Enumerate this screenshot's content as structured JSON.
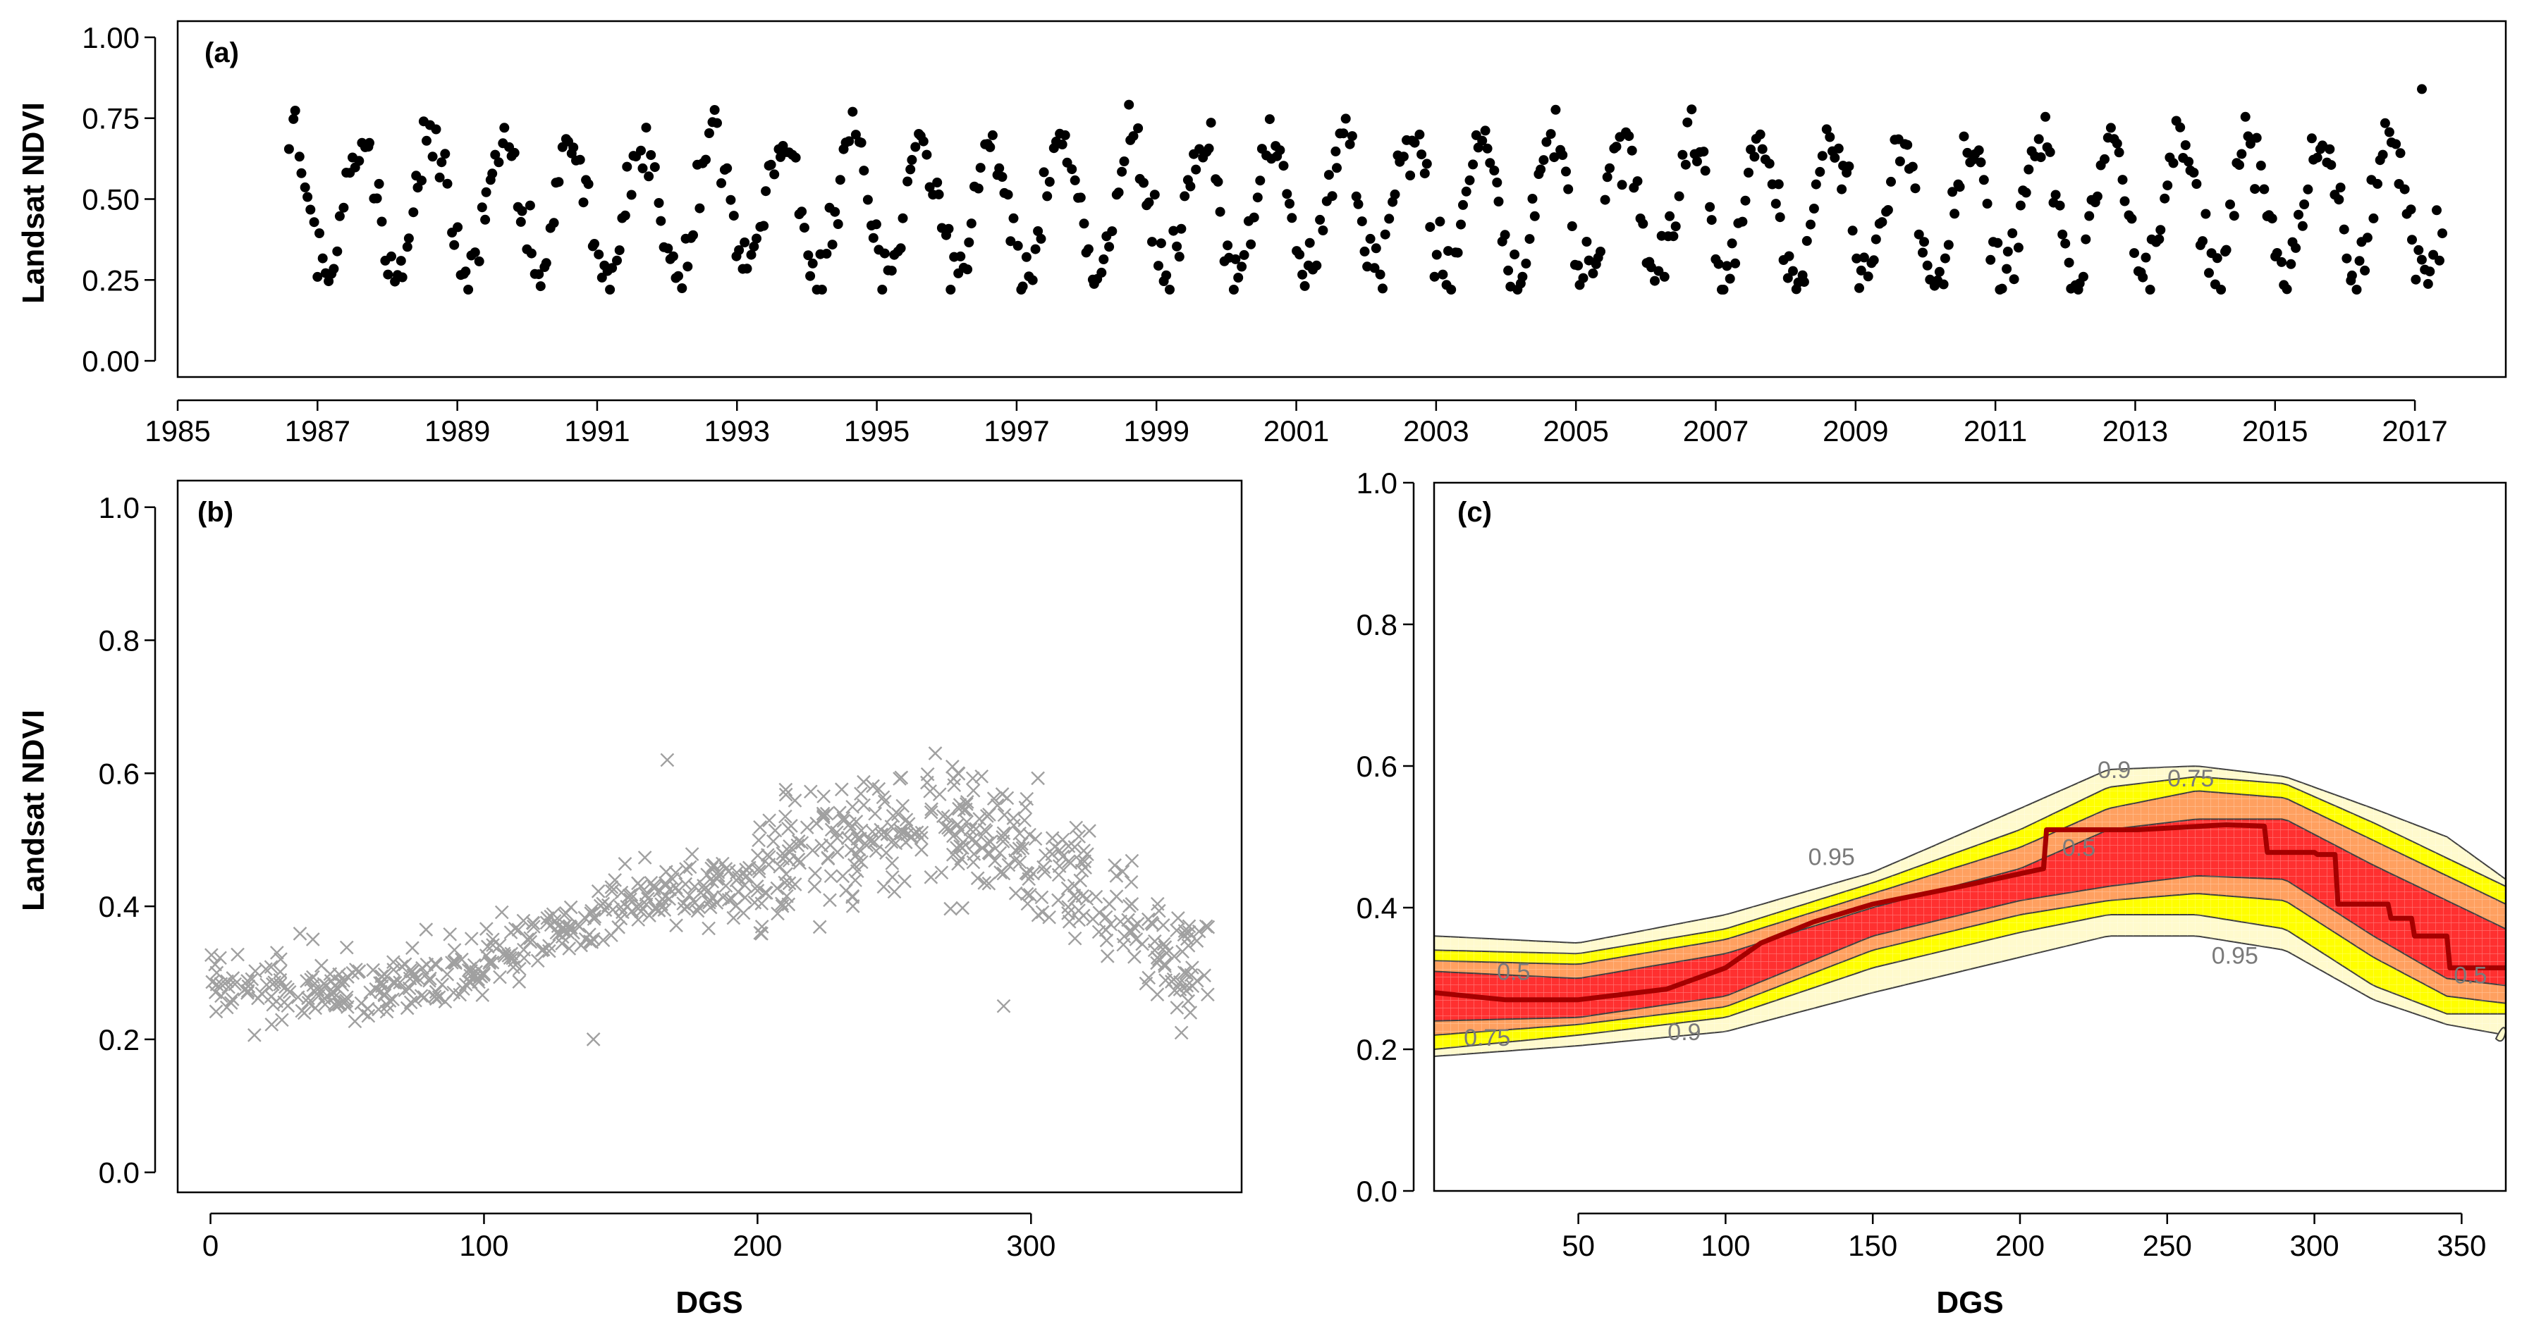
{
  "chart_data": [
    {
      "panel": "(a)",
      "type": "scatter",
      "ylabel": "Landsat NDVI",
      "xlabel": "",
      "xlim": [
        1985,
        2018.3
      ],
      "ylim": [
        -0.05,
        1.05
      ],
      "xticks": [
        "1985",
        "1987",
        "1989",
        "1991",
        "1993",
        "1995",
        "1997",
        "1999",
        "2001",
        "2003",
        "2005",
        "2007",
        "2009",
        "2011",
        "2013",
        "2015",
        "2017"
      ],
      "yticks": [
        "0.00",
        "0.25",
        "0.50",
        "0.75",
        "1.00"
      ],
      "marker": "filled circle",
      "marker_color": "#000000",
      "series": {
        "description": "Landsat NDVI time series, seasonal oscillation between ~0.25 and ~0.75",
        "x_start": 1986.6,
        "x_end": 2017.4,
        "n_points": 720,
        "seasonal_min": 0.27,
        "seasonal_max": 0.68,
        "peak_day_of_year": 235,
        "highest_value": 0.84,
        "highest_value_year": 2017.1,
        "lowest_value": 0.22
      }
    },
    {
      "panel": "(b)",
      "type": "scatter",
      "ylabel": "Landsat NDVI",
      "xlabel": "DGS",
      "xlim": [
        -12,
        377
      ],
      "ylim": [
        -0.03,
        1.04
      ],
      "xticks": [
        "0",
        "100",
        "200",
        "300"
      ],
      "yticks": [
        "0.0",
        "0.2",
        "0.4",
        "0.6",
        "0.8",
        "1.0"
      ],
      "marker": "x",
      "marker_color": "#a0a0a0",
      "seasonal_profile": {
        "dgs": [
          0,
          50,
          100,
          150,
          200,
          230,
          260,
          290,
          320,
          350,
          365
        ],
        "ndvi": [
          0.29,
          0.27,
          0.31,
          0.4,
          0.45,
          0.51,
          0.53,
          0.5,
          0.43,
          0.33,
          0.3
        ]
      },
      "n_points": 720,
      "notable_points": [
        [
          167,
          0.62
        ],
        [
          265,
          0.63
        ],
        [
          140,
          0.2
        ],
        [
          355,
          0.21
        ],
        [
          290,
          0.25
        ]
      ]
    },
    {
      "panel": "(c)",
      "type": "contour",
      "xlabel": "DGS",
      "ylabel": "",
      "xlim": [
        1,
        365
      ],
      "ylim": [
        0.0,
        1.0
      ],
      "xticks": [
        "50",
        "100",
        "150",
        "200",
        "250",
        "300",
        "350"
      ],
      "yticks": [
        "0.0",
        "0.2",
        "0.4",
        "0.6",
        "0.8",
        "1.0"
      ],
      "x_knots": [
        1,
        50,
        100,
        150,
        200,
        230,
        260,
        290,
        320,
        345,
        365
      ],
      "median_line": {
        "name": "median",
        "color": "#a50000",
        "dgs": [
          1,
          25,
          50,
          80,
          100,
          112,
          130,
          150,
          180,
          208,
          209,
          240,
          270,
          283,
          284,
          300,
          301,
          307,
          308,
          325,
          326,
          333,
          334,
          345,
          346,
          365
        ],
        "ndvi": [
          0.28,
          0.27,
          0.27,
          0.285,
          0.315,
          0.35,
          0.38,
          0.405,
          0.43,
          0.455,
          0.51,
          0.51,
          0.517,
          0.515,
          0.478,
          0.478,
          0.475,
          0.475,
          0.405,
          0.405,
          0.385,
          0.385,
          0.36,
          0.36,
          0.315,
          0.315
        ]
      },
      "bands": [
        {
          "level": "0.95",
          "color": "#fffacd",
          "lower": [
            0.19,
            0.205,
            0.225,
            0.28,
            0.33,
            0.36,
            0.36,
            0.34,
            0.27,
            0.235,
            0.22
          ],
          "upper": [
            0.36,
            0.35,
            0.39,
            0.45,
            0.54,
            0.595,
            0.6,
            0.585,
            0.54,
            0.5,
            0.44
          ]
        },
        {
          "level": "0.9",
          "color": "#ffff00",
          "lower": [
            0.2,
            0.22,
            0.245,
            0.315,
            0.365,
            0.39,
            0.39,
            0.37,
            0.29,
            0.25,
            0.25
          ],
          "upper": [
            0.34,
            0.335,
            0.37,
            0.435,
            0.51,
            0.57,
            0.585,
            0.575,
            0.52,
            0.47,
            0.43
          ]
        },
        {
          "level": "0.75",
          "color": "#ffa060",
          "lower": [
            0.22,
            0.235,
            0.26,
            0.34,
            0.39,
            0.41,
            0.42,
            0.41,
            0.33,
            0.275,
            0.265
          ],
          "upper": [
            0.325,
            0.32,
            0.355,
            0.42,
            0.485,
            0.54,
            0.565,
            0.555,
            0.495,
            0.445,
            0.405
          ]
        },
        {
          "level": "0.5",
          "color": "#ff3030",
          "lower": [
            0.24,
            0.245,
            0.275,
            0.36,
            0.41,
            0.43,
            0.445,
            0.44,
            0.36,
            0.3,
            0.29
          ],
          "upper": [
            0.31,
            0.3,
            0.335,
            0.4,
            0.455,
            0.51,
            0.525,
            0.525,
            0.46,
            0.41,
            0.37
          ]
        }
      ],
      "contour_labels": [
        {
          "text": "0.9",
          "x": 232,
          "y": 0.595
        },
        {
          "text": "0.75",
          "x": 258,
          "y": 0.583
        },
        {
          "text": "0.95",
          "x": 136,
          "y": 0.472
        },
        {
          "text": "0.5",
          "x": 220,
          "y": 0.485
        },
        {
          "text": "0.5",
          "x": 28,
          "y": 0.31
        },
        {
          "text": "0.75",
          "x": 19,
          "y": 0.217
        },
        {
          "text": "0.9",
          "x": 86,
          "y": 0.225
        },
        {
          "text": "0.95",
          "x": 273,
          "y": 0.333
        },
        {
          "text": "0.5",
          "x": 353,
          "y": 0.305
        }
      ]
    }
  ]
}
